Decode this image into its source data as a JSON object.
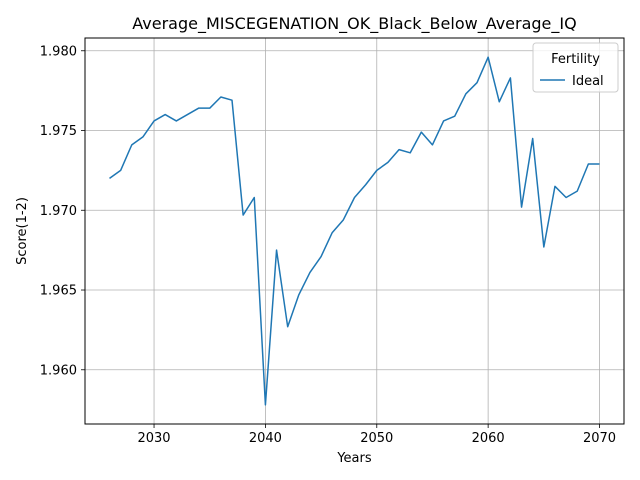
{
  "chart_data": {
    "type": "line",
    "title": "Average_MISCEGENATION_OK_Black_Below_Average_IQ",
    "xlabel": "Years",
    "ylabel": "Score(1-2)",
    "xlim": [
      2023.8,
      2072.2
    ],
    "ylim": [
      1.9566,
      1.9808
    ],
    "xticks": [
      2030,
      2040,
      2050,
      2060,
      2070
    ],
    "xtick_labels": [
      "2030",
      "2040",
      "2050",
      "2060",
      "2070"
    ],
    "yticks": [
      1.96,
      1.965,
      1.97,
      1.975,
      1.98
    ],
    "ytick_labels": [
      "1.960",
      "1.965",
      "1.970",
      "1.975",
      "1.980"
    ],
    "grid": true,
    "legend": {
      "title": "Fertility",
      "position": "top-right"
    },
    "x": [
      2026,
      2027,
      2028,
      2029,
      2030,
      2031,
      2032,
      2033,
      2034,
      2035,
      2036,
      2037,
      2038,
      2039,
      2040,
      2041,
      2042,
      2043,
      2044,
      2045,
      2046,
      2047,
      2048,
      2049,
      2050,
      2051,
      2052,
      2053,
      2054,
      2055,
      2056,
      2057,
      2058,
      2059,
      2060,
      2061,
      2062,
      2063,
      2064,
      2065,
      2066,
      2067,
      2068,
      2069,
      2070
    ],
    "series": [
      {
        "name": "Ideal",
        "color": "#1f77b4",
        "values": [
          1.972,
          1.9725,
          1.9741,
          1.9746,
          1.9756,
          1.976,
          1.9756,
          1.976,
          1.9764,
          1.9764,
          1.9771,
          1.9769,
          1.9697,
          1.9708,
          1.9578,
          1.9675,
          1.9627,
          1.9647,
          1.9661,
          1.9671,
          1.9686,
          1.9694,
          1.9708,
          1.9716,
          1.9725,
          1.973,
          1.9738,
          1.9736,
          1.9749,
          1.9741,
          1.9756,
          1.9759,
          1.9773,
          1.978,
          1.9796,
          1.9768,
          1.9783,
          1.9702,
          1.9745,
          1.9677,
          1.9715,
          1.9708,
          1.9712,
          1.9729,
          1.9729
        ]
      }
    ]
  }
}
